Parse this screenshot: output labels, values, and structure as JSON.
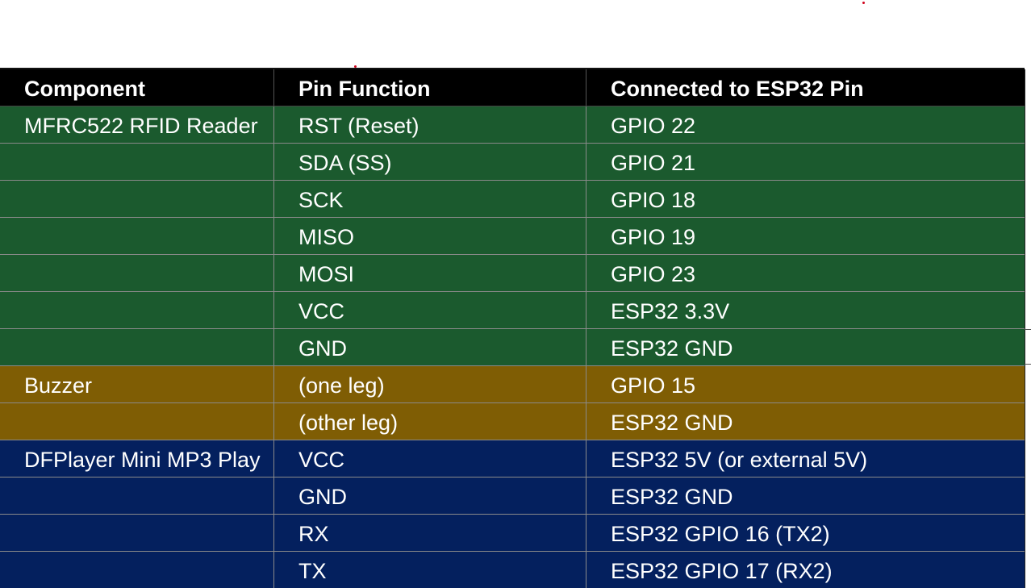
{
  "table": {
    "headers": [
      "Component",
      "Pin Function",
      "Connected to ESP32 Pin"
    ],
    "rows": [
      {
        "group": "rfid",
        "component": "MFRC522 RFID Reader",
        "pin": "RST (Reset)",
        "esp32": "GPIO 22"
      },
      {
        "group": "rfid",
        "component": "",
        "pin": "SDA (SS)",
        "esp32": "GPIO 21"
      },
      {
        "group": "rfid",
        "component": "",
        "pin": "SCK",
        "esp32": "GPIO 18"
      },
      {
        "group": "rfid",
        "component": "",
        "pin": "MISO",
        "esp32": "GPIO 19"
      },
      {
        "group": "rfid",
        "component": "",
        "pin": "MOSI",
        "esp32": "GPIO 23"
      },
      {
        "group": "rfid",
        "component": "",
        "pin": "VCC",
        "esp32": "ESP32 3.3V"
      },
      {
        "group": "rfid",
        "component": "",
        "pin": "GND",
        "esp32": "ESP32 GND"
      },
      {
        "group": "buzzer",
        "component": "Buzzer",
        "pin": "(one leg)",
        "esp32": "GPIO 15"
      },
      {
        "group": "buzzer",
        "component": "",
        "pin": "(other leg)",
        "esp32": "ESP32 GND"
      },
      {
        "group": "dfp",
        "component": "DFPlayer Mini MP3 Play",
        "pin": "VCC",
        "esp32": "ESP32 5V (or external 5V)"
      },
      {
        "group": "dfp",
        "component": "",
        "pin": "GND",
        "esp32": "ESP32 GND"
      },
      {
        "group": "dfp",
        "component": "",
        "pin": "RX",
        "esp32": "ESP32 GPIO 16 (TX2)"
      },
      {
        "group": "dfp",
        "component": "",
        "pin": "TX",
        "esp32": "ESP32 GPIO 17 (RX2)"
      }
    ]
  },
  "colors": {
    "header": "#000000",
    "rfid": "#1b5a2e",
    "buzzer": "#7f5d04",
    "dfp": "#04205e",
    "text": "#ffffff"
  }
}
